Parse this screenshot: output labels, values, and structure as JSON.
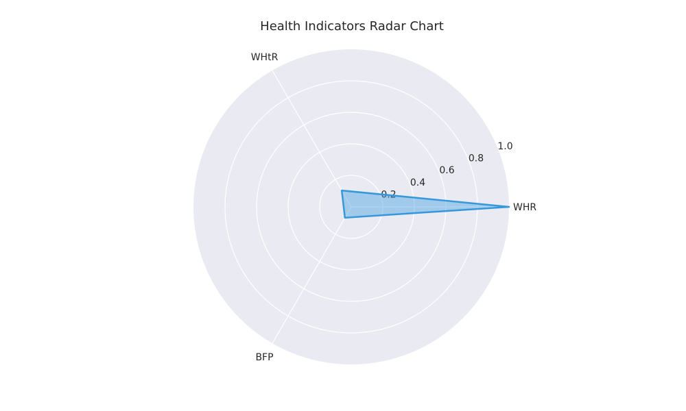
{
  "chart_data": {
    "type": "radar",
    "title": "Health Indicators Radar Chart",
    "categories": [
      "WHR",
      "WHtR",
      "BFP"
    ],
    "series": [
      {
        "values": [
          1.0,
          0.12,
          0.08
        ]
      }
    ],
    "rlim": [
      0,
      1.0
    ],
    "r_ticks": [
      "0.2",
      "0.4",
      "0.6",
      "0.8",
      "1.0"
    ],
    "r_tick_values": [
      0.2,
      0.4,
      0.6,
      0.8,
      1.0
    ],
    "grid": true,
    "colors": {
      "background": "#eaeaf2",
      "grid": "#ffffff",
      "line": "#3498db",
      "fill": "#3498db"
    }
  }
}
